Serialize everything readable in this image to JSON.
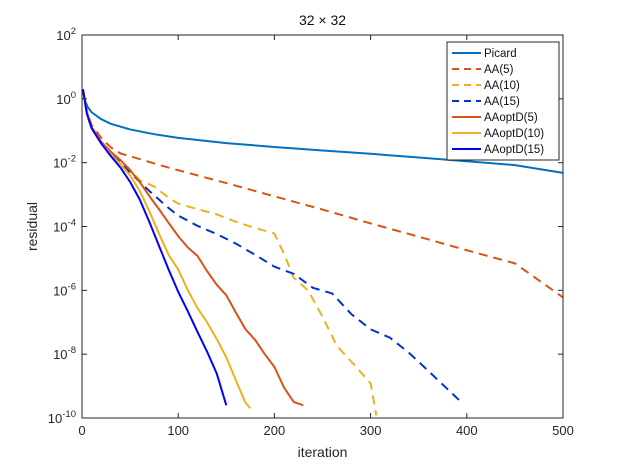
{
  "chart_data": {
    "type": "line",
    "title": "32 × 32",
    "xlabel": "iteration",
    "ylabel": "residual",
    "xlim": [
      0,
      500
    ],
    "ylim": [
      1e-10,
      100
    ],
    "yscale": "log",
    "grid": false,
    "legend_position": "top-right",
    "x_ticks": [
      {
        "value": 0,
        "label": "0"
      },
      {
        "value": 100,
        "label": "100"
      },
      {
        "value": 200,
        "label": "200"
      },
      {
        "value": 300,
        "label": "300"
      },
      {
        "value": 400,
        "label": "400"
      },
      {
        "value": 500,
        "label": "500"
      }
    ],
    "y_ticks": [
      {
        "value": 1e-10,
        "base": "10",
        "exp": "-10"
      },
      {
        "value": 1e-08,
        "base": "10",
        "exp": "-8"
      },
      {
        "value": 1e-06,
        "base": "10",
        "exp": "-6"
      },
      {
        "value": 0.0001,
        "base": "10",
        "exp": "-4"
      },
      {
        "value": 0.01,
        "base": "10",
        "exp": "-2"
      },
      {
        "value": 1,
        "base": "10",
        "exp": "0"
      },
      {
        "value": 100,
        "base": "10",
        "exp": "2"
      }
    ],
    "series": [
      {
        "name": "Picard",
        "color": "#0072BD",
        "dash": "solid",
        "points": [
          [
            1,
            2.0
          ],
          [
            3,
            0.9
          ],
          [
            6,
            0.55
          ],
          [
            10,
            0.38
          ],
          [
            20,
            0.23
          ],
          [
            30,
            0.165
          ],
          [
            50,
            0.11
          ],
          [
            75,
            0.078
          ],
          [
            100,
            0.06
          ],
          [
            150,
            0.041
          ],
          [
            200,
            0.031
          ],
          [
            250,
            0.024
          ],
          [
            300,
            0.019
          ],
          [
            350,
            0.0145
          ],
          [
            400,
            0.0111
          ],
          [
            450,
            0.0084
          ],
          [
            500,
            0.0048
          ]
        ]
      },
      {
        "name": "AA(5)",
        "color": "#D95319",
        "dash": "dashed",
        "points": [
          [
            1,
            2.0
          ],
          [
            5,
            0.4
          ],
          [
            10,
            0.15
          ],
          [
            20,
            0.06
          ],
          [
            30,
            0.03
          ],
          [
            40,
            0.0195
          ],
          [
            60,
            0.013
          ],
          [
            80,
            0.0085
          ],
          [
            100,
            0.0058
          ],
          [
            150,
            0.0023
          ],
          [
            200,
            0.00088
          ],
          [
            250,
            0.00034
          ],
          [
            300,
            0.000125
          ],
          [
            350,
            4.8e-05
          ],
          [
            400,
            1.8e-05
          ],
          [
            450,
            7e-06
          ],
          [
            500,
            6e-07
          ]
        ]
      },
      {
        "name": "AA(10)",
        "color": "#EDB120",
        "dash": "dashed",
        "points": [
          [
            1,
            2.0
          ],
          [
            5,
            0.35
          ],
          [
            10,
            0.12
          ],
          [
            20,
            0.045
          ],
          [
            30,
            0.02
          ],
          [
            40,
            0.012
          ],
          [
            50,
            0.006
          ],
          [
            60,
            0.0028
          ],
          [
            75,
            0.0018
          ],
          [
            90,
            0.0008
          ],
          [
            100,
            0.00052
          ],
          [
            120,
            0.00035
          ],
          [
            140,
            0.00024
          ],
          [
            160,
            0.00014
          ],
          [
            180,
            9e-05
          ],
          [
            200,
            6e-05
          ],
          [
            210,
            1.4e-05
          ],
          [
            220,
            2.5e-06
          ],
          [
            235,
            1e-06
          ],
          [
            250,
            1.5e-07
          ],
          [
            265,
            1.8e-08
          ],
          [
            285,
            4e-09
          ],
          [
            300,
            1.2e-09
          ],
          [
            306,
            1.2e-10
          ]
        ]
      },
      {
        "name": "AA(15)",
        "color": "#0033CC",
        "dash": "dashed",
        "points": [
          [
            1,
            2.0
          ],
          [
            5,
            0.35
          ],
          [
            10,
            0.12
          ],
          [
            20,
            0.04
          ],
          [
            30,
            0.018
          ],
          [
            40,
            0.01
          ],
          [
            50,
            0.005
          ],
          [
            60,
            0.0025
          ],
          [
            70,
            0.0013
          ],
          [
            80,
            0.0007
          ],
          [
            90,
            0.00038
          ],
          [
            100,
            0.00022
          ],
          [
            120,
            0.000105
          ],
          [
            140,
            5.8e-05
          ],
          [
            160,
            2.9e-05
          ],
          [
            180,
            1.3e-05
          ],
          [
            200,
            5.5e-06
          ],
          [
            220,
            3.3e-06
          ],
          [
            240,
            1.2e-06
          ],
          [
            260,
            8e-07
          ],
          [
            280,
            1.8e-07
          ],
          [
            300,
            6e-08
          ],
          [
            320,
            3.3e-08
          ],
          [
            340,
            1.1e-08
          ],
          [
            360,
            3e-09
          ],
          [
            380,
            8e-10
          ],
          [
            395,
            3e-10
          ]
        ]
      },
      {
        "name": "AAoptD(5)",
        "color": "#D95319",
        "dash": "solid",
        "points": [
          [
            1,
            2.0
          ],
          [
            5,
            0.4
          ],
          [
            10,
            0.13
          ],
          [
            20,
            0.045
          ],
          [
            30,
            0.022
          ],
          [
            40,
            0.012
          ],
          [
            50,
            0.0058
          ],
          [
            60,
            0.0025
          ],
          [
            70,
            0.0009
          ],
          [
            80,
            0.00035
          ],
          [
            90,
            0.00013
          ],
          [
            100,
            5e-05
          ],
          [
            110,
            2.2e-05
          ],
          [
            120,
            1.2e-05
          ],
          [
            130,
            4e-06
          ],
          [
            140,
            1.5e-06
          ],
          [
            150,
            7e-07
          ],
          [
            160,
            2e-07
          ],
          [
            170,
            6e-08
          ],
          [
            180,
            2.8e-08
          ],
          [
            190,
            1e-08
          ],
          [
            200,
            4e-09
          ],
          [
            210,
            9e-10
          ],
          [
            220,
            3.2e-10
          ],
          [
            230,
            2.5e-10
          ]
        ]
      },
      {
        "name": "AAoptD(10)",
        "color": "#EDB120",
        "dash": "solid",
        "points": [
          [
            1,
            2.0
          ],
          [
            5,
            0.35
          ],
          [
            10,
            0.12
          ],
          [
            20,
            0.04
          ],
          [
            30,
            0.018
          ],
          [
            40,
            0.009
          ],
          [
            50,
            0.004
          ],
          [
            60,
            0.0013
          ],
          [
            70,
            0.0003
          ],
          [
            80,
            6e-05
          ],
          [
            90,
            1.3e-05
          ],
          [
            100,
            4.5e-06
          ],
          [
            110,
            1e-06
          ],
          [
            120,
            2.8e-07
          ],
          [
            130,
            1e-07
          ],
          [
            140,
            3e-08
          ],
          [
            150,
            8e-09
          ],
          [
            160,
            1.5e-09
          ],
          [
            170,
            3e-10
          ],
          [
            175,
            2e-10
          ]
        ]
      },
      {
        "name": "AAoptD(15)",
        "color": "#0000FF",
        "dash": "solid",
        "points": [
          [
            1,
            2.0
          ],
          [
            5,
            0.35
          ],
          [
            10,
            0.12
          ],
          [
            20,
            0.04
          ],
          [
            30,
            0.016
          ],
          [
            40,
            0.007
          ],
          [
            50,
            0.0025
          ],
          [
            60,
            0.0007
          ],
          [
            70,
            0.00014
          ],
          [
            80,
            2.5e-05
          ],
          [
            90,
            4.5e-06
          ],
          [
            100,
            9e-07
          ],
          [
            110,
            2.2e-07
          ],
          [
            120,
            5e-08
          ],
          [
            130,
            1.2e-08
          ],
          [
            140,
            2.5e-09
          ],
          [
            150,
            2.5e-10
          ]
        ]
      }
    ]
  }
}
